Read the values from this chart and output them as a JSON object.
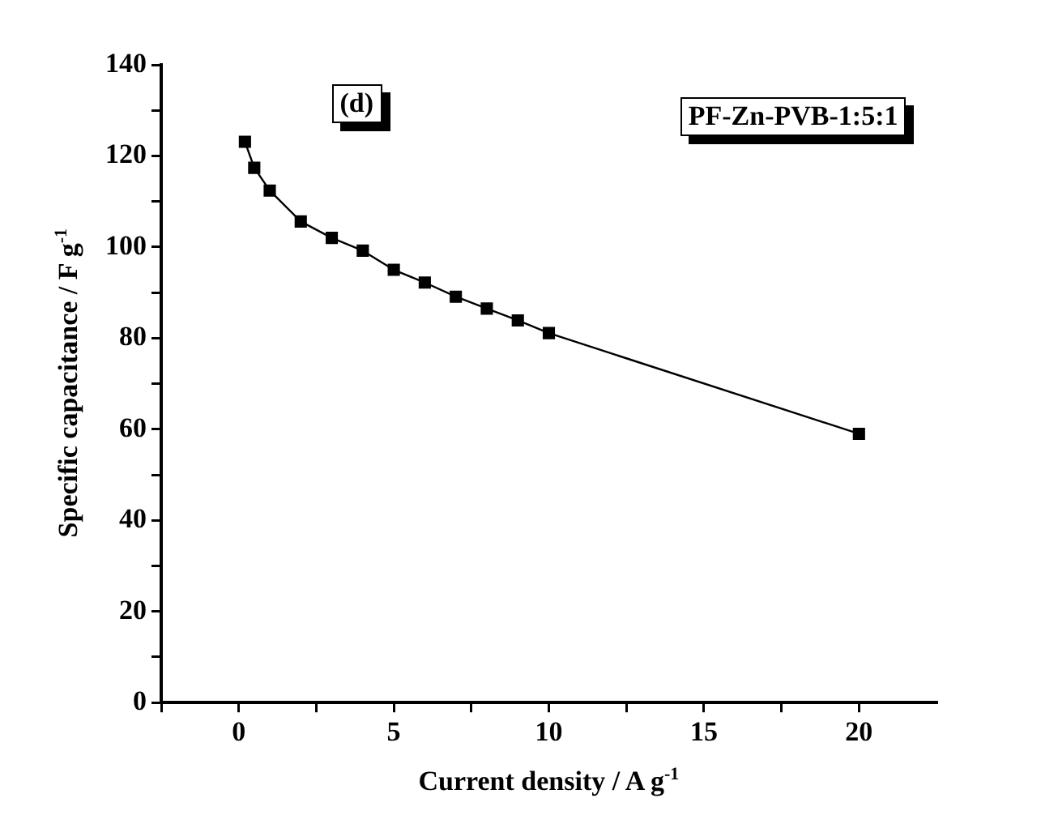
{
  "chart_data": {
    "type": "line",
    "xlabel": "Current density  / A g$^{-1}$",
    "ylabel": "Specific capacitance / F g$^{-1}$",
    "annotations": [
      "(d)",
      "PF-Zn-PVB-1:5:1"
    ],
    "x": [
      0.2,
      0.5,
      1,
      2,
      3,
      4,
      5,
      6,
      7,
      8,
      9,
      10,
      20
    ],
    "series": [
      {
        "color": "#000000",
        "values": [
          123.1,
          117.4,
          112.4,
          105.6,
          102.0,
          99.2,
          95.0,
          92.2,
          89.1,
          86.5,
          83.9,
          81.1,
          59.0
        ]
      }
    ],
    "xlim": [
      -2.5,
      22.5
    ],
    "xticks": [
      0,
      5,
      10,
      15,
      20,
      {
        "value": -2.5,
        "label": null
      },
      {
        "value": 2.5,
        "label": null
      },
      {
        "value": 7.5,
        "label": null
      },
      {
        "value": 12.5,
        "label": null
      },
      {
        "value": 17.5,
        "label": null
      }
    ],
    "ylim": [
      0,
      140
    ],
    "yticks": [
      0,
      20,
      40,
      60,
      80,
      100,
      120,
      140,
      {
        "value": 10,
        "label": null
      },
      {
        "value": 30,
        "label": null
      },
      {
        "value": 50,
        "label": null
      },
      {
        "value": 70,
        "label": null
      },
      {
        "value": 90,
        "label": null
      },
      {
        "value": 110,
        "label": null
      },
      {
        "value": 130,
        "label": null
      }
    ],
    "grid": false,
    "legend": false,
    "marker": "square",
    "line_style": "solid"
  }
}
